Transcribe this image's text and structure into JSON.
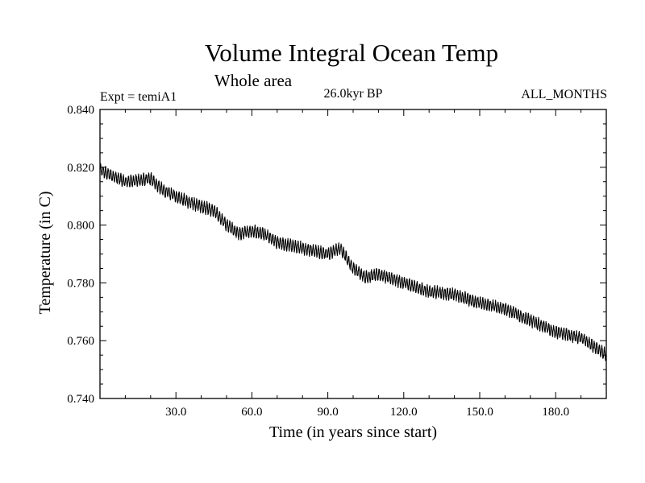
{
  "chart_data": {
    "type": "line",
    "title": "Volume Integral Ocean Temp",
    "subtitle": "Whole area",
    "left_label": "Expt = temiA1",
    "center_label": "26.0kyr BP",
    "right_label": "ALL_MONTHS",
    "xlabel": "Time (in years since start)",
    "ylabel": "Temperature (in C)",
    "xlim": [
      0,
      200
    ],
    "ylim": [
      0.74,
      0.84
    ],
    "x_ticks": [
      30,
      60,
      90,
      120,
      150,
      180
    ],
    "x_tick_labels": [
      "30.0",
      "60.0",
      "90.0",
      "120.0",
      "150.0",
      "180.0"
    ],
    "y_ticks": [
      0.74,
      0.76,
      0.78,
      0.8,
      0.82,
      0.84
    ],
    "y_tick_labels": [
      "0.740",
      "0.760",
      "0.780",
      "0.800",
      "0.820",
      "0.840"
    ],
    "series": [
      {
        "name": "Volume integral ocean temperature",
        "seasonal_amplitude": 0.0018,
        "color": "#000000",
        "x": [
          0,
          10,
          20,
          25,
          35,
          45,
          50,
          55,
          60,
          65,
          70,
          80,
          90,
          95,
          100,
          105,
          110,
          120,
          130,
          140,
          150,
          160,
          170,
          180,
          190,
          200
        ],
        "values": [
          0.819,
          0.815,
          0.816,
          0.812,
          0.808,
          0.805,
          0.8,
          0.797,
          0.798,
          0.797,
          0.794,
          0.792,
          0.79,
          0.792,
          0.785,
          0.782,
          0.783,
          0.78,
          0.777,
          0.776,
          0.773,
          0.771,
          0.767,
          0.763,
          0.761,
          0.755
        ]
      }
    ]
  }
}
